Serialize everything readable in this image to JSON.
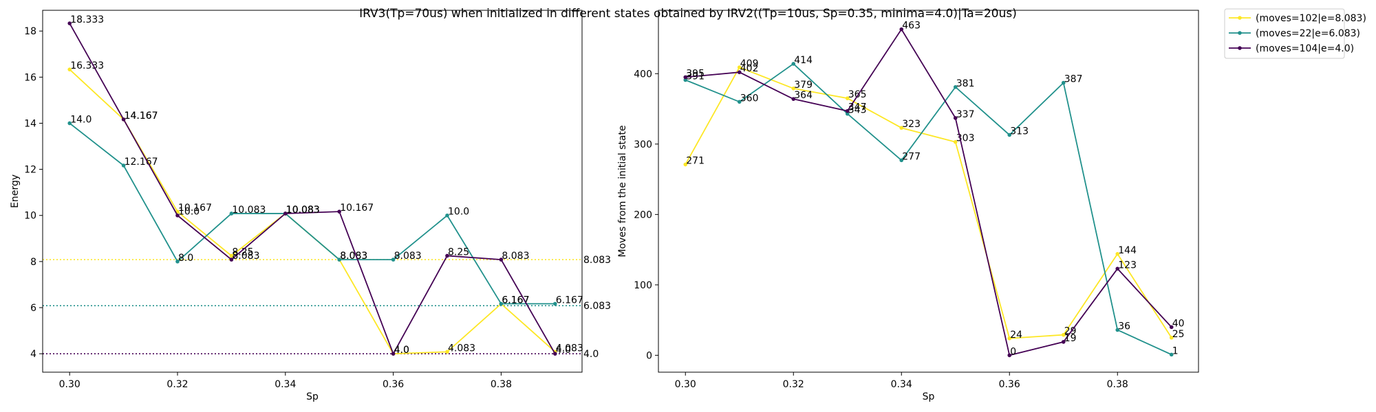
{
  "figure_title": "IRV3(Tp=70us) when initialized in different states obtained by IRV2((Tp=10us, Sp=0.35, minima=4.0)|Ta=20us)",
  "chart_data": [
    {
      "type": "line",
      "xlabel": "Sp",
      "ylabel": "Energy",
      "xlim": [
        0.295,
        0.395
      ],
      "ylim": [
        3.2,
        18.9
      ],
      "xticks": [
        "0.30",
        "0.32",
        "0.34",
        "0.36",
        "0.38"
      ],
      "yticks": [
        "4",
        "6",
        "8",
        "10",
        "12",
        "14",
        "16",
        "18"
      ],
      "x": [
        0.3,
        0.31,
        0.32,
        0.33,
        0.34,
        0.35,
        0.36,
        0.37,
        0.38,
        0.39
      ],
      "series": [
        {
          "name": "(moves=102|e=8.083)",
          "color": "#fde725",
          "values": [
            16.333,
            14.167,
            10.167,
            8.25,
            10.083,
            8.083,
            4.0,
            4.083,
            6.167,
            4.083
          ],
          "labels": [
            "16.333",
            "14.167",
            "10.167",
            "8.25",
            "10.083",
            "8.083",
            "4.0",
            "4.083",
            "6.167",
            "4.083"
          ],
          "hline": 8.083,
          "hline_label": "8.083"
        },
        {
          "name": "(moves=22|e=6.083)",
          "color": "#21918c",
          "values": [
            14.0,
            12.167,
            8.0,
            10.083,
            10.083,
            8.083,
            8.083,
            10.0,
            6.167,
            6.167
          ],
          "labels": [
            "14.0",
            "12.167",
            "8.0",
            "10.083",
            "10.083",
            "8.083",
            "8.083",
            "10.0",
            "6.167",
            "6.167"
          ],
          "hline": 6.083,
          "hline_label": "6.083"
        },
        {
          "name": "(moves=104|e=4.0)",
          "color": "#440154",
          "values": [
            18.333,
            14.167,
            10.0,
            8.083,
            10.083,
            10.167,
            4.0,
            8.25,
            8.083,
            4.0
          ],
          "labels": [
            "18.333",
            "14.167",
            "10.0",
            "8.083",
            "10.083",
            "10.167",
            "4.0",
            "8.25",
            "8.083",
            "4.0"
          ],
          "hline": 4.0,
          "hline_label": "4.0"
        }
      ]
    },
    {
      "type": "line",
      "xlabel": "Sp",
      "ylabel": "Moves from the initial state",
      "xlim": [
        0.295,
        0.395
      ],
      "ylim": [
        -24,
        490
      ],
      "xticks": [
        "0.30",
        "0.32",
        "0.34",
        "0.36",
        "0.38"
      ],
      "yticks": [
        "0",
        "100",
        "200",
        "300",
        "400"
      ],
      "x": [
        0.3,
        0.31,
        0.32,
        0.33,
        0.34,
        0.35,
        0.36,
        0.37,
        0.38,
        0.39
      ],
      "series": [
        {
          "name": "(moves=102|e=8.083)",
          "color": "#fde725",
          "values": [
            271,
            409,
            379,
            365,
            323,
            303,
            24,
            29,
            144,
            25
          ],
          "labels": [
            "271",
            "409",
            "379",
            "365",
            "323",
            "303",
            "24",
            "29",
            "144",
            "25"
          ]
        },
        {
          "name": "(moves=22|e=6.083)",
          "color": "#21918c",
          "values": [
            391,
            360,
            414,
            343,
            277,
            381,
            313,
            387,
            36,
            1
          ],
          "labels": [
            "391",
            "360",
            "414",
            "343",
            "277",
            "381",
            "313",
            "387",
            "36",
            "1"
          ]
        },
        {
          "name": "(moves=104|e=4.0)",
          "color": "#440154",
          "values": [
            395,
            402,
            364,
            347,
            463,
            337,
            0,
            19,
            123,
            40
          ],
          "labels": [
            "395",
            "402",
            "364",
            "347",
            "463",
            "337",
            "0",
            "19",
            "123",
            "40"
          ]
        }
      ]
    }
  ],
  "legend": {
    "placement": "outside-right",
    "entries": [
      {
        "label": "(moves=102|e=8.083)",
        "color": "#fde725"
      },
      {
        "label": "(moves=22|e=6.083)",
        "color": "#21918c"
      },
      {
        "label": "(moves=104|e=4.0)",
        "color": "#440154"
      }
    ]
  }
}
